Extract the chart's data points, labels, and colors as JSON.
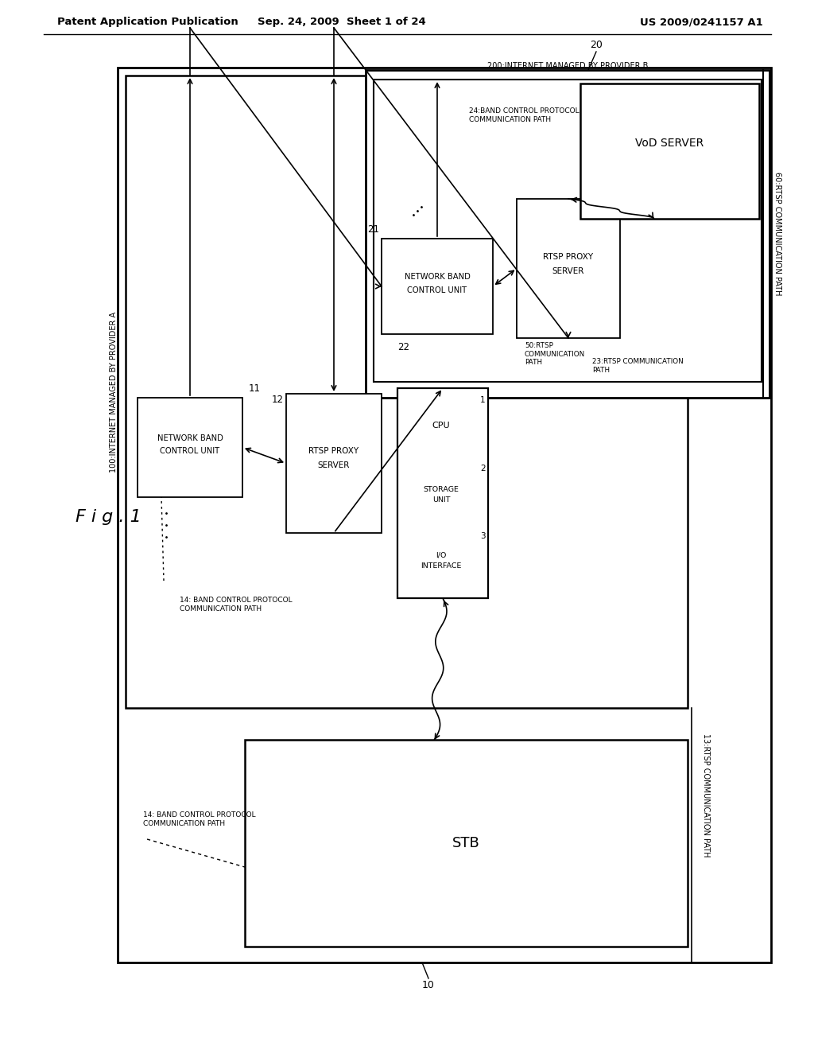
{
  "title_left": "Patent Application Publication",
  "title_center": "Sep. 24, 2009  Sheet 1 of 24",
  "title_right": "US 2009/0241157 A1",
  "fig_label": "F i g . 1",
  "background": "#ffffff"
}
